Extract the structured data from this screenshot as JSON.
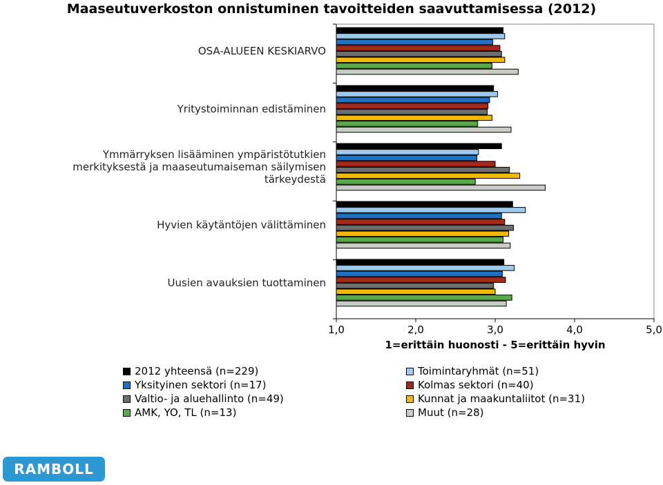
{
  "chart_data": {
    "type": "bar",
    "orientation": "horizontal",
    "title": "Maaseutuverkoston onnistuminen tavoitteiden saavuttamisessa (2012)",
    "xlabel": "1=erittäin huonosti - 5=erittäin hyvin",
    "xlim": [
      1,
      5
    ],
    "ticks": [
      "1,0",
      "2,0",
      "3,0",
      "4,0",
      "5,0"
    ],
    "tick_values": [
      1,
      2,
      3,
      4,
      5
    ],
    "grid": false,
    "legend_position": "bottom",
    "categories": [
      "OSA-ALUEEN KESKIARVO",
      "Yritystoiminnan edistäminen",
      "Ymmärryksen lisääminen ympäristötutkien merkityksestä ja maaseutumaiseman säilymisen tärkeydestä",
      "Hyvien käytäntöjen välittäminen",
      "Uusien avauksien tuottaminen"
    ],
    "category_lines": [
      [
        "OSA-ALUEEN KESKIARVO"
      ],
      [
        "Yritystoiminnan edistäminen"
      ],
      [
        "Ymmärryksen lisääminen ympäristötutkien",
        "merkityksestä ja maaseutumaiseman säilymisen",
        "tärkeydestä"
      ],
      [
        "Hyvien käytäntöjen välittäminen"
      ],
      [
        "Uusien avauksien tuottaminen"
      ]
    ],
    "series": [
      {
        "name": "2012 yhteensä (n=229)",
        "color": "#000000",
        "values": [
          3.1,
          2.98,
          3.08,
          3.22,
          3.11
        ]
      },
      {
        "name": "Toimintaryhmät (n=51)",
        "color": "#9ccaf0",
        "values": [
          3.12,
          3.03,
          2.79,
          3.38,
          3.24
        ]
      },
      {
        "name": "Yksityinen sektori (n=17)",
        "color": "#1f6fc2",
        "values": [
          2.97,
          2.93,
          2.77,
          3.08,
          3.09
        ]
      },
      {
        "name": "Kolmas sektori (n=40)",
        "color": "#a52a1a",
        "values": [
          3.06,
          2.91,
          3.0,
          3.12,
          3.13
        ]
      },
      {
        "name": "Valtio- ja aluehallinto (n=49)",
        "color": "#6e6e6e",
        "values": [
          3.08,
          2.9,
          3.18,
          3.23,
          2.98
        ]
      },
      {
        "name": "Kunnat ja maakuntaliitot (n=31)",
        "color": "#f5b800",
        "values": [
          3.12,
          2.96,
          3.31,
          3.17,
          3.0
        ]
      },
      {
        "name": "AMK, YO, TL (n=13)",
        "color": "#5aa84b",
        "values": [
          2.96,
          2.78,
          2.75,
          3.1,
          3.21
        ]
      },
      {
        "name": "Muut (n=28)",
        "color": "#c8ccc4",
        "values": [
          3.29,
          3.2,
          3.63,
          3.19,
          3.14
        ]
      }
    ]
  },
  "legend_left": [
    0,
    2,
    4,
    6
  ],
  "legend_right": [
    1,
    3,
    5,
    7
  ],
  "logo_text": "RAMBOLL"
}
